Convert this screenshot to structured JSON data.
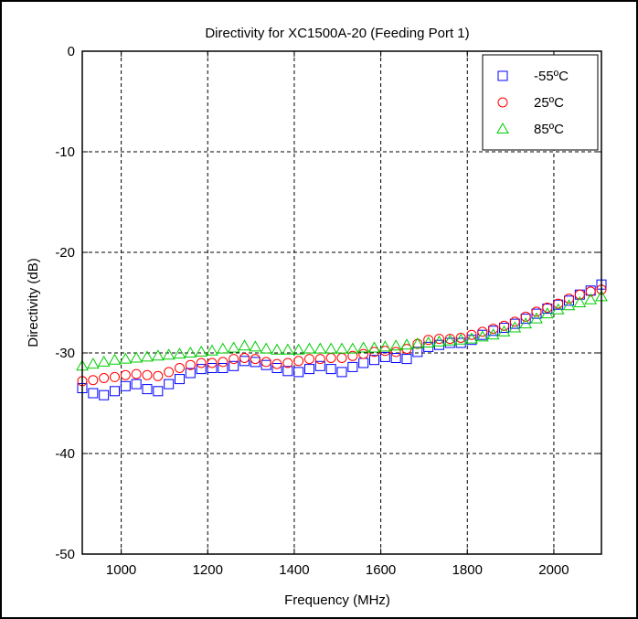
{
  "chart_data": {
    "type": "scatter",
    "title": "Directivity for XC1500A-20 (Feeding Port 1)",
    "xlabel": "Frequency (MHz)",
    "ylabel": "Directivity (dB)",
    "xlim": [
      910,
      2110
    ],
    "ylim": [
      -50,
      0
    ],
    "xticks": [
      1000,
      1200,
      1400,
      1600,
      1800,
      2000
    ],
    "yticks": [
      0,
      -10,
      -20,
      -30,
      -40,
      -50
    ],
    "grid": true,
    "legend_position": "top-right",
    "x": [
      910,
      935,
      960,
      985,
      1010,
      1035,
      1060,
      1085,
      1110,
      1135,
      1160,
      1185,
      1210,
      1235,
      1260,
      1285,
      1310,
      1335,
      1360,
      1385,
      1410,
      1435,
      1460,
      1485,
      1510,
      1535,
      1560,
      1585,
      1610,
      1635,
      1660,
      1685,
      1710,
      1735,
      1760,
      1785,
      1810,
      1835,
      1860,
      1885,
      1910,
      1935,
      1960,
      1985,
      2010,
      2035,
      2060,
      2085,
      2110
    ],
    "series": [
      {
        "name": "-55ºC",
        "marker": "square",
        "color": "#0000ff",
        "values": [
          -33.5,
          -34,
          -34.2,
          -33.8,
          -33.3,
          -33.1,
          -33.6,
          -33.8,
          -33.1,
          -32.6,
          -32,
          -31.6,
          -31.5,
          -31.5,
          -31.3,
          -30.8,
          -30.9,
          -31.2,
          -31.5,
          -31.8,
          -31.9,
          -31.6,
          -31.3,
          -31.6,
          -31.9,
          -31.4,
          -31,
          -30.7,
          -30.4,
          -30.5,
          -30.6,
          -29.9,
          -29.4,
          -29.2,
          -29,
          -29,
          -28.7,
          -28.2,
          -27.8,
          -27.5,
          -27.1,
          -26.6,
          -26.1,
          -25.6,
          -25.2,
          -24.8,
          -24.2,
          -23.8,
          -23.2
        ]
      },
      {
        "name": "25ºC",
        "marker": "circle",
        "color": "#ff0000",
        "values": [
          -32.8,
          -32.7,
          -32.5,
          -32.4,
          -32.2,
          -32.1,
          -32.2,
          -32.3,
          -31.9,
          -31.5,
          -31.2,
          -31,
          -31,
          -30.9,
          -30.6,
          -30.5,
          -30.6,
          -30.9,
          -31.1,
          -31,
          -30.8,
          -30.6,
          -30.6,
          -30.5,
          -30.5,
          -30.3,
          -30.1,
          -29.9,
          -29.8,
          -29.9,
          -29.6,
          -29.1,
          -28.7,
          -28.6,
          -28.6,
          -28.5,
          -28.2,
          -27.9,
          -27.6,
          -27.3,
          -26.9,
          -26.4,
          -25.9,
          -25.5,
          -25.1,
          -24.6,
          -24.2,
          -23.9,
          -23.7
        ]
      },
      {
        "name": "85ºC",
        "marker": "triangle",
        "color": "#00cc00",
        "values": [
          -31.3,
          -31.1,
          -30.9,
          -30.7,
          -30.6,
          -30.5,
          -30.4,
          -30.3,
          -30.2,
          -30.1,
          -30,
          -29.9,
          -29.8,
          -29.6,
          -29.5,
          -29.3,
          -29.4,
          -29.6,
          -29.7,
          -29.7,
          -29.7,
          -29.6,
          -29.6,
          -29.6,
          -29.6,
          -29.6,
          -29.5,
          -29.5,
          -29.4,
          -29.3,
          -29.2,
          -29.1,
          -29,
          -28.9,
          -28.8,
          -28.7,
          -28.6,
          -28.4,
          -28.2,
          -27.9,
          -27.5,
          -27.1,
          -26.6,
          -26.1,
          -25.7,
          -25.3,
          -25,
          -24.7,
          -24.4
        ]
      }
    ]
  }
}
